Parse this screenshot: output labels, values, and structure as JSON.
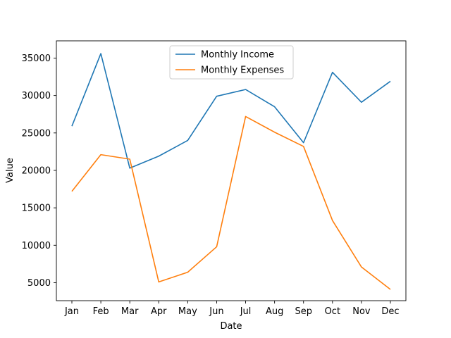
{
  "chart_data": {
    "type": "line",
    "categories": [
      "Jan",
      "Feb",
      "Mar",
      "Apr",
      "May",
      "Jun",
      "Jul",
      "Aug",
      "Sep",
      "Oct",
      "Nov",
      "Dec"
    ],
    "series": [
      {
        "name": "Monthly Income",
        "color": "#1f77b4",
        "values": [
          25900,
          35600,
          20300,
          21900,
          24000,
          29900,
          30800,
          28500,
          23700,
          33100,
          29100,
          31900
        ]
      },
      {
        "name": "Monthly Expenses",
        "color": "#ff7f0e",
        "values": [
          17200,
          22100,
          21500,
          5100,
          6400,
          9800,
          27200,
          25100,
          23200,
          13300,
          7100,
          4100
        ]
      }
    ],
    "xlabel": "Date",
    "ylabel": "Value",
    "ylim": [
      2600,
      37300
    ],
    "yticks": [
      5000,
      10000,
      15000,
      20000,
      25000,
      30000,
      35000
    ],
    "legend": "upper center",
    "grid": false
  }
}
